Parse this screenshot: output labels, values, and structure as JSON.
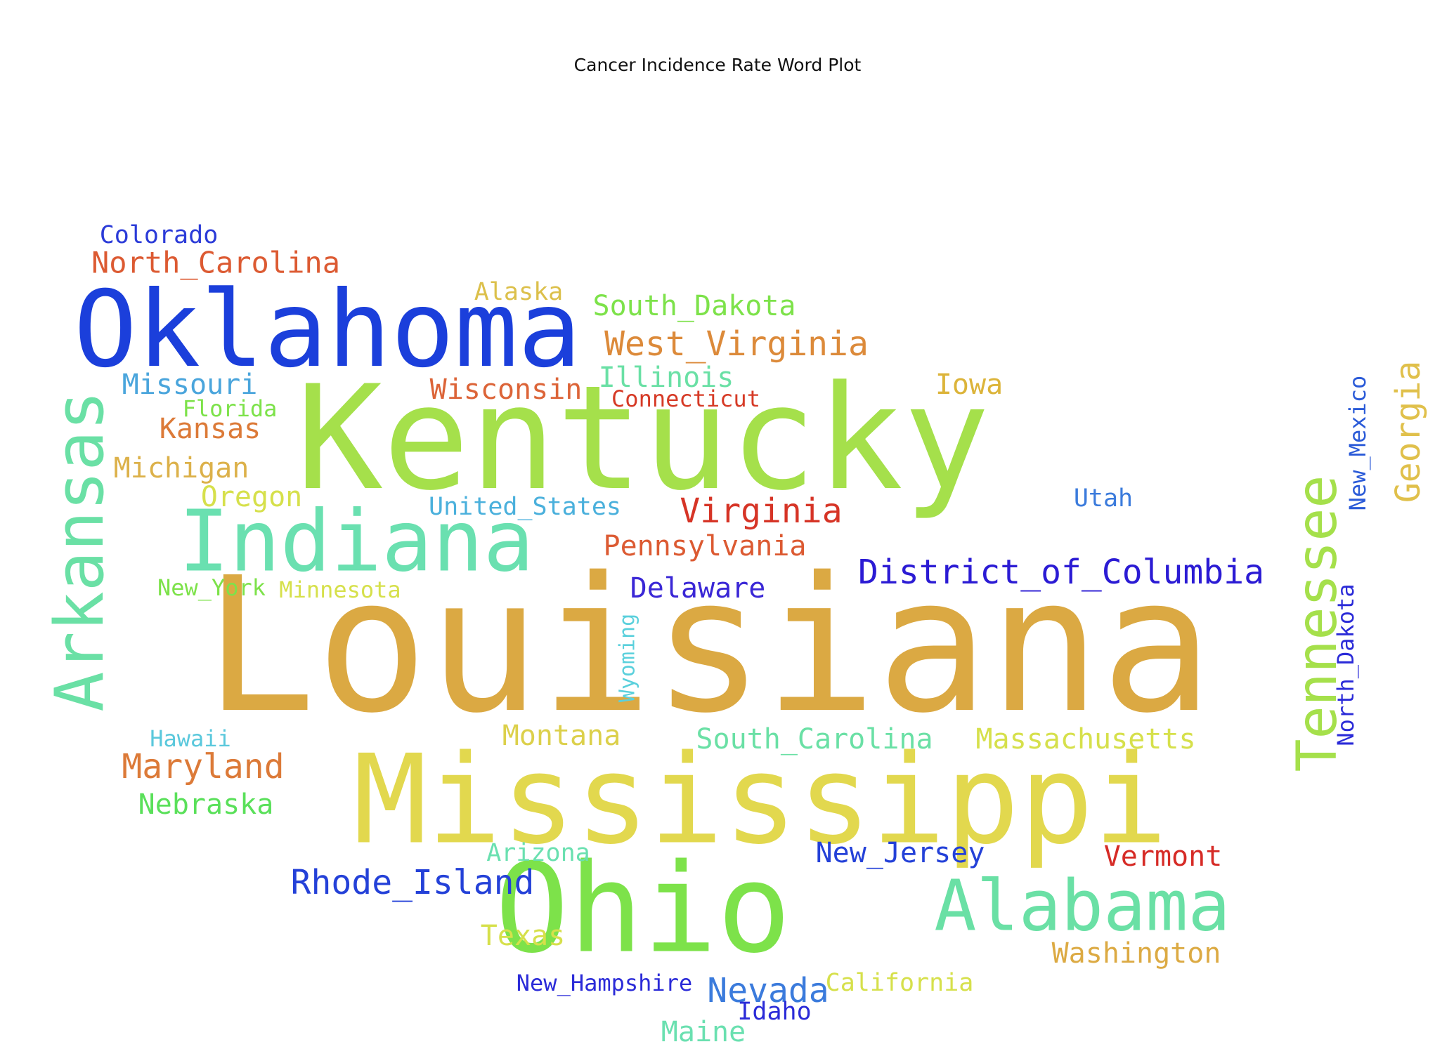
{
  "chart_data": {
    "type": "wordcloud",
    "title": "Cancer Incidence Rate Word Plot",
    "words": [
      {
        "text": "Louisiana",
        "color": "#dba943"
      },
      {
        "text": "Kentucky",
        "color": "#a5e04b"
      },
      {
        "text": "Mississippi",
        "color": "#e2d84e"
      },
      {
        "text": "Oklahoma",
        "color": "#1b3fdb"
      },
      {
        "text": "Ohio",
        "color": "#7de24a"
      },
      {
        "text": "Indiana",
        "color": "#6ae0b0"
      },
      {
        "text": "Arkansas",
        "color": "#6ae0a5"
      },
      {
        "text": "Alabama",
        "color": "#6ae0a5"
      },
      {
        "text": "Tennessee",
        "color": "#a5e04b"
      },
      {
        "text": "District_of_Columbia",
        "color": "#2b1bd4"
      },
      {
        "text": "West_Virginia",
        "color": "#dc8a3a"
      },
      {
        "text": "Virginia",
        "color": "#d63426"
      },
      {
        "text": "Rhode_Island",
        "color": "#2441d8"
      },
      {
        "text": "Maryland",
        "color": "#dc7a38"
      },
      {
        "text": "North_Carolina",
        "color": "#dc5a32"
      },
      {
        "text": "Nevada",
        "color": "#3b7bdc"
      },
      {
        "text": "Georgia",
        "color": "#e0c04b"
      },
      {
        "text": "Pennsylvania",
        "color": "#dc5a32"
      },
      {
        "text": "South_Dakota",
        "color": "#7de24a"
      },
      {
        "text": "Delaware",
        "color": "#3a27d6"
      },
      {
        "text": "Wisconsin",
        "color": "#dc6438"
      },
      {
        "text": "New_Jersey",
        "color": "#2441d8"
      },
      {
        "text": "Missouri",
        "color": "#4aa5dc"
      },
      {
        "text": "Michigan",
        "color": "#dcb14a"
      },
      {
        "text": "Illinois",
        "color": "#6ae0a5"
      },
      {
        "text": "South_Carolina",
        "color": "#6ae0a5"
      },
      {
        "text": "Massachusetts",
        "color": "#d6e04b"
      },
      {
        "text": "Vermont",
        "color": "#d62b26"
      },
      {
        "text": "Washington",
        "color": "#dcaa43"
      },
      {
        "text": "Kansas",
        "color": "#dc7a38"
      },
      {
        "text": "Montana",
        "color": "#dcd04b"
      },
      {
        "text": "Nebraska",
        "color": "#5ae05a"
      },
      {
        "text": "Oregon",
        "color": "#d6e04b"
      },
      {
        "text": "United_States",
        "color": "#4ab0dc"
      },
      {
        "text": "Iowa",
        "color": "#dcb43a"
      },
      {
        "text": "Texas",
        "color": "#d6e04b"
      },
      {
        "text": "New_Mexico",
        "color": "#2b5bd8"
      },
      {
        "text": "Alaska",
        "color": "#dcc04b"
      },
      {
        "text": "Connecticut",
        "color": "#d63a26"
      },
      {
        "text": "California",
        "color": "#d6e04b"
      },
      {
        "text": "Colorado",
        "color": "#2b3bd8"
      },
      {
        "text": "New_Hampshire",
        "color": "#2b2bd8"
      },
      {
        "text": "North_Dakota",
        "color": "#2b2bd8"
      },
      {
        "text": "Utah",
        "color": "#3b7bdc"
      },
      {
        "text": "Maine",
        "color": "#6ae0b0"
      },
      {
        "text": "Idaho",
        "color": "#2b2bd8"
      },
      {
        "text": "Arizona",
        "color": "#6ae0b0"
      },
      {
        "text": "Hawaii",
        "color": "#5ac8dc"
      },
      {
        "text": "New_York",
        "color": "#7de24a"
      },
      {
        "text": "Minnesota",
        "color": "#d6e04b"
      },
      {
        "text": "Florida",
        "color": "#7de24a"
      },
      {
        "text": "Wyoming",
        "color": "#5ad0dc"
      }
    ]
  }
}
